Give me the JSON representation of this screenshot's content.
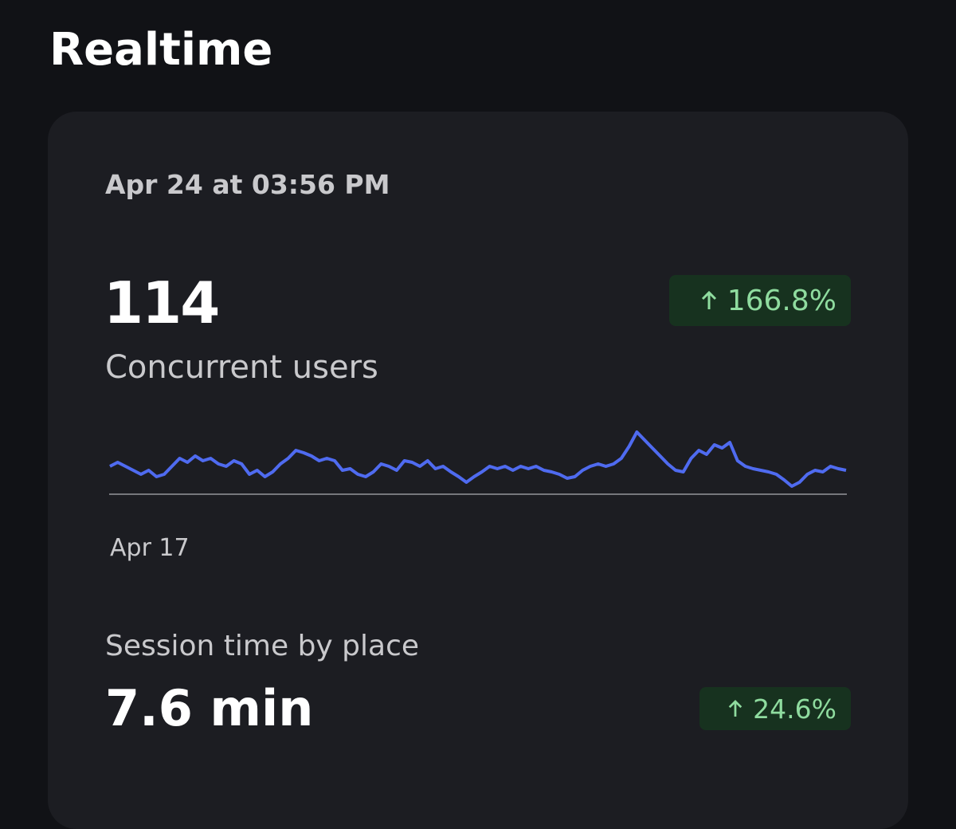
{
  "header": {
    "title": "Realtime"
  },
  "card": {
    "timestamp": "Apr 24 at 03:56 PM",
    "concurrent": {
      "value": "114",
      "label": "Concurrent users",
      "change": "166.8%"
    },
    "sparkline": {
      "type": "line",
      "color": "#4f6bf0",
      "start_label": "Apr 17",
      "ylim": [
        0,
        90
      ],
      "values": [
        35,
        40,
        35,
        30,
        25,
        30,
        22,
        25,
        35,
        45,
        40,
        48,
        42,
        45,
        38,
        35,
        42,
        38,
        25,
        30,
        22,
        28,
        38,
        45,
        55,
        52,
        48,
        42,
        45,
        42,
        30,
        32,
        25,
        22,
        28,
        38,
        35,
        30,
        42,
        40,
        35,
        42,
        32,
        35,
        28,
        22,
        15,
        22,
        28,
        35,
        32,
        35,
        30,
        35,
        32,
        35,
        30,
        28,
        25,
        20,
        22,
        30,
        35,
        38,
        35,
        38,
        45,
        60,
        78,
        68,
        58,
        48,
        38,
        30,
        28,
        45,
        55,
        50,
        62,
        58,
        65,
        42,
        35,
        32,
        30,
        28,
        25,
        18,
        10,
        15,
        25,
        30,
        28,
        35,
        32,
        30
      ]
    },
    "session": {
      "label": "Session time by place",
      "value": "7.6 min",
      "change": "24.6%"
    }
  }
}
